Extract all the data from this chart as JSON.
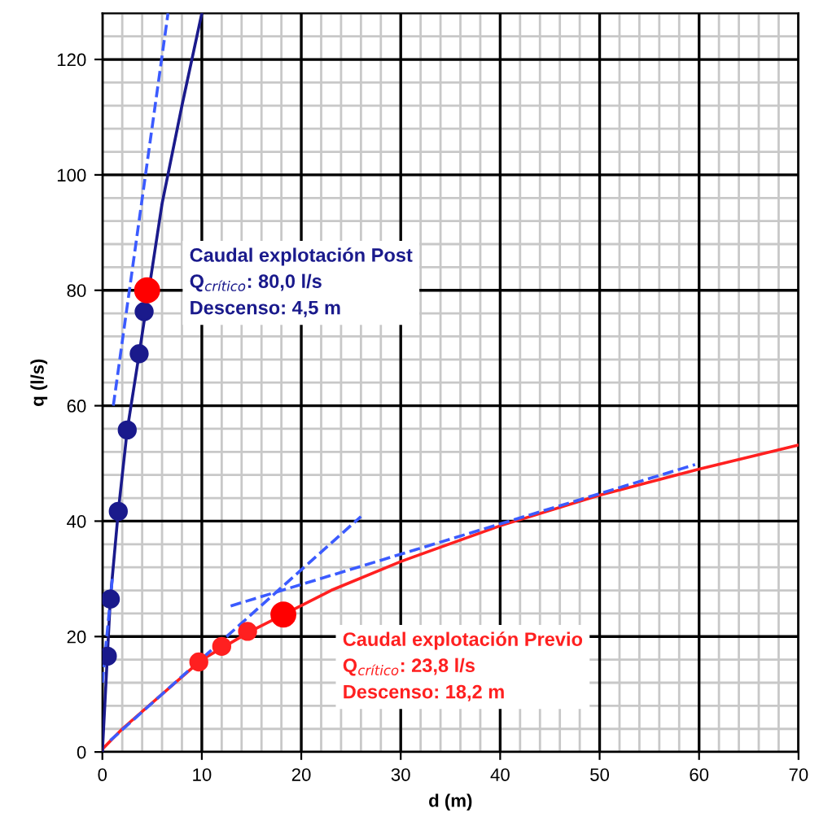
{
  "chart_data": {
    "type": "scatter",
    "xlabel": "d (m)",
    "ylabel": "q (l/s)",
    "xlim": [
      0,
      70
    ],
    "ylim": [
      0,
      128
    ],
    "xticks": [
      0,
      10,
      20,
      30,
      40,
      50,
      60,
      70
    ],
    "yticks": [
      0,
      20,
      40,
      60,
      80,
      100,
      120
    ],
    "grid": true,
    "series": [
      {
        "type": "line",
        "color": "#ff2020",
        "line_style": "solid",
        "marker": "none",
        "x": [
          0,
          2,
          6,
          10,
          15,
          18.2,
          23,
          30,
          40,
          50,
          60,
          70
        ],
        "values": [
          0.5,
          4,
          10,
          16,
          21,
          23.8,
          28,
          33,
          39.2,
          44.5,
          49,
          53.2
        ]
      },
      {
        "type": "line",
        "color": "#1a1a8c",
        "line_style": "solid",
        "marker": "none",
        "x": [
          0,
          0.5,
          0.8,
          1.6,
          2.5,
          3.7,
          6,
          8,
          10
        ],
        "values": [
          0,
          16.6,
          26.5,
          41.7,
          55.8,
          69,
          95,
          112,
          128
        ]
      },
      {
        "type": "line",
        "color": "#3b5bff",
        "line_style": "dashed",
        "marker": "none",
        "x": [
          1.1,
          6.6
        ],
        "values": [
          60,
          128
        ]
      },
      {
        "type": "line",
        "color": "#3b5bff",
        "line_style": "dashed",
        "marker": "none",
        "x": [
          0,
          1
        ],
        "values": [
          12,
          30
        ]
      },
      {
        "type": "line",
        "color": "#3b5bff",
        "line_style": "dashed",
        "marker": "none",
        "x": [
          0.8,
          26
        ],
        "values": [
          2,
          40.8
        ]
      },
      {
        "type": "line",
        "color": "#3b5bff",
        "line_style": "dashed",
        "marker": "none",
        "x": [
          12.9,
          59.6
        ],
        "values": [
          25.3,
          49.8
        ]
      },
      {
        "color": "#1a1a8c",
        "marker": "circle",
        "x": [
          0.5,
          0.8,
          1.6,
          2.5,
          3.7,
          4.2
        ],
        "values": [
          16.6,
          26.5,
          41.7,
          55.8,
          69,
          76.3
        ]
      },
      {
        "color": "#ff2020",
        "marker": "circle",
        "x": [
          9.7,
          12,
          14.6
        ],
        "values": [
          15.6,
          18.3,
          20.9
        ]
      },
      {
        "color": "#ff0000",
        "marker": "circle",
        "x": [
          4.5,
          18.2
        ],
        "values": [
          80,
          23.8
        ]
      }
    ],
    "annotations": [
      "Caudal explotación Post\nQ$_{crítico}$: 80,0 l/s\nDescenso: 4,5 m",
      "Caudal explotación Previo\nQ$_{crítico}$: 23,8 l/s\nDescenso: 18,2 m"
    ]
  }
}
